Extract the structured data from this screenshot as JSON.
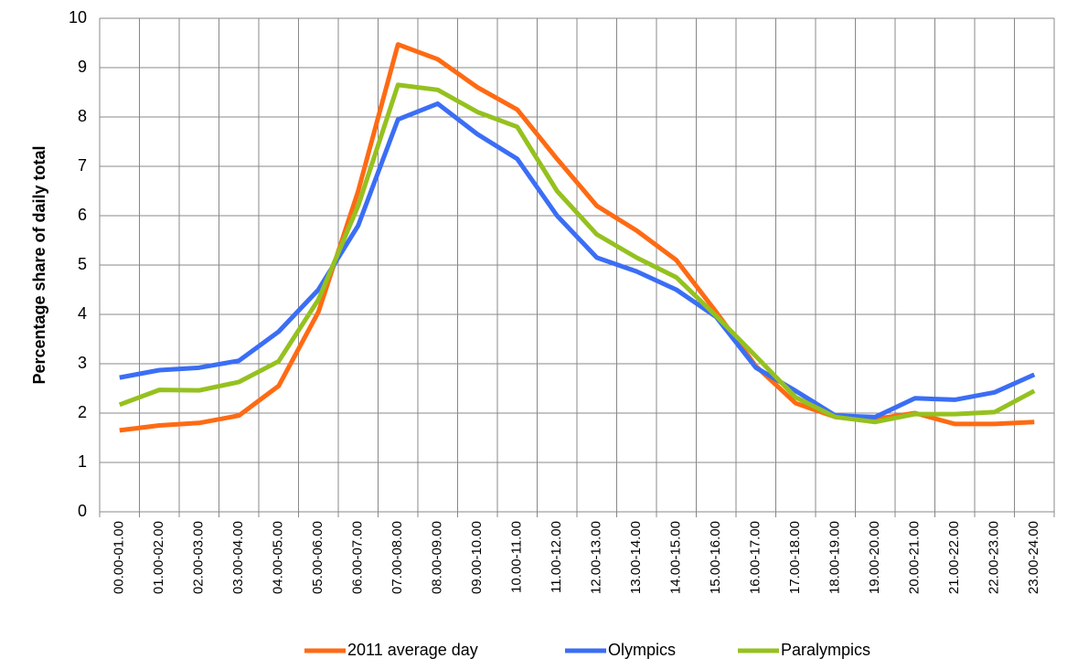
{
  "chart_data": {
    "type": "line",
    "y_label": "Percentage share of daily total",
    "categories": [
      "00.00-01.00",
      "01.00-02.00",
      "02.00-03.00",
      "03.00-04.00",
      "04.00-05.00",
      "05.00-06.00",
      "06.00-07.00",
      "07.00-08.00",
      "08.00-09.00",
      "09.00-10.00",
      "10.00-11.00",
      "11.00-12.00",
      "12.00-13.00",
      "13.00-14.00",
      "14.00-15.00",
      "15.00-16.00",
      "16.00-17.00",
      "17.00-18.00",
      "18.00-19.00",
      "19.00-20.00",
      "20.00-21.00",
      "21.00-22.00",
      "22.00-23.00",
      "23.00-24.00"
    ],
    "series": [
      {
        "name": "2011 average day",
        "color": "#ff6a13",
        "values": [
          1.65,
          1.75,
          1.8,
          1.95,
          2.55,
          4.05,
          6.5,
          9.47,
          9.17,
          8.6,
          8.15,
          7.15,
          6.2,
          5.7,
          5.1,
          4.05,
          2.95,
          2.2,
          1.92,
          1.88,
          2.0,
          1.78,
          1.78,
          1.82
        ]
      },
      {
        "name": "Olympics",
        "color": "#3b6ef5",
        "values": [
          2.72,
          2.87,
          2.92,
          3.06,
          3.65,
          4.5,
          5.8,
          7.95,
          8.27,
          7.65,
          7.15,
          6.0,
          5.15,
          4.87,
          4.5,
          3.95,
          2.92,
          2.45,
          1.95,
          1.92,
          2.3,
          2.27,
          2.42,
          2.78
        ]
      },
      {
        "name": "Paralympics",
        "color": "#95c11f",
        "values": [
          2.17,
          2.47,
          2.46,
          2.63,
          3.05,
          4.3,
          6.2,
          8.65,
          8.55,
          8.1,
          7.8,
          6.5,
          5.62,
          5.15,
          4.75,
          3.97,
          3.15,
          2.32,
          1.92,
          1.82,
          1.98,
          1.98,
          2.02,
          2.45
        ]
      }
    ],
    "ylim": [
      0,
      10
    ],
    "yticks": [
      0,
      1,
      2,
      3,
      4,
      5,
      6,
      7,
      8,
      9,
      10
    ],
    "grid": true,
    "legend": "bottom"
  }
}
